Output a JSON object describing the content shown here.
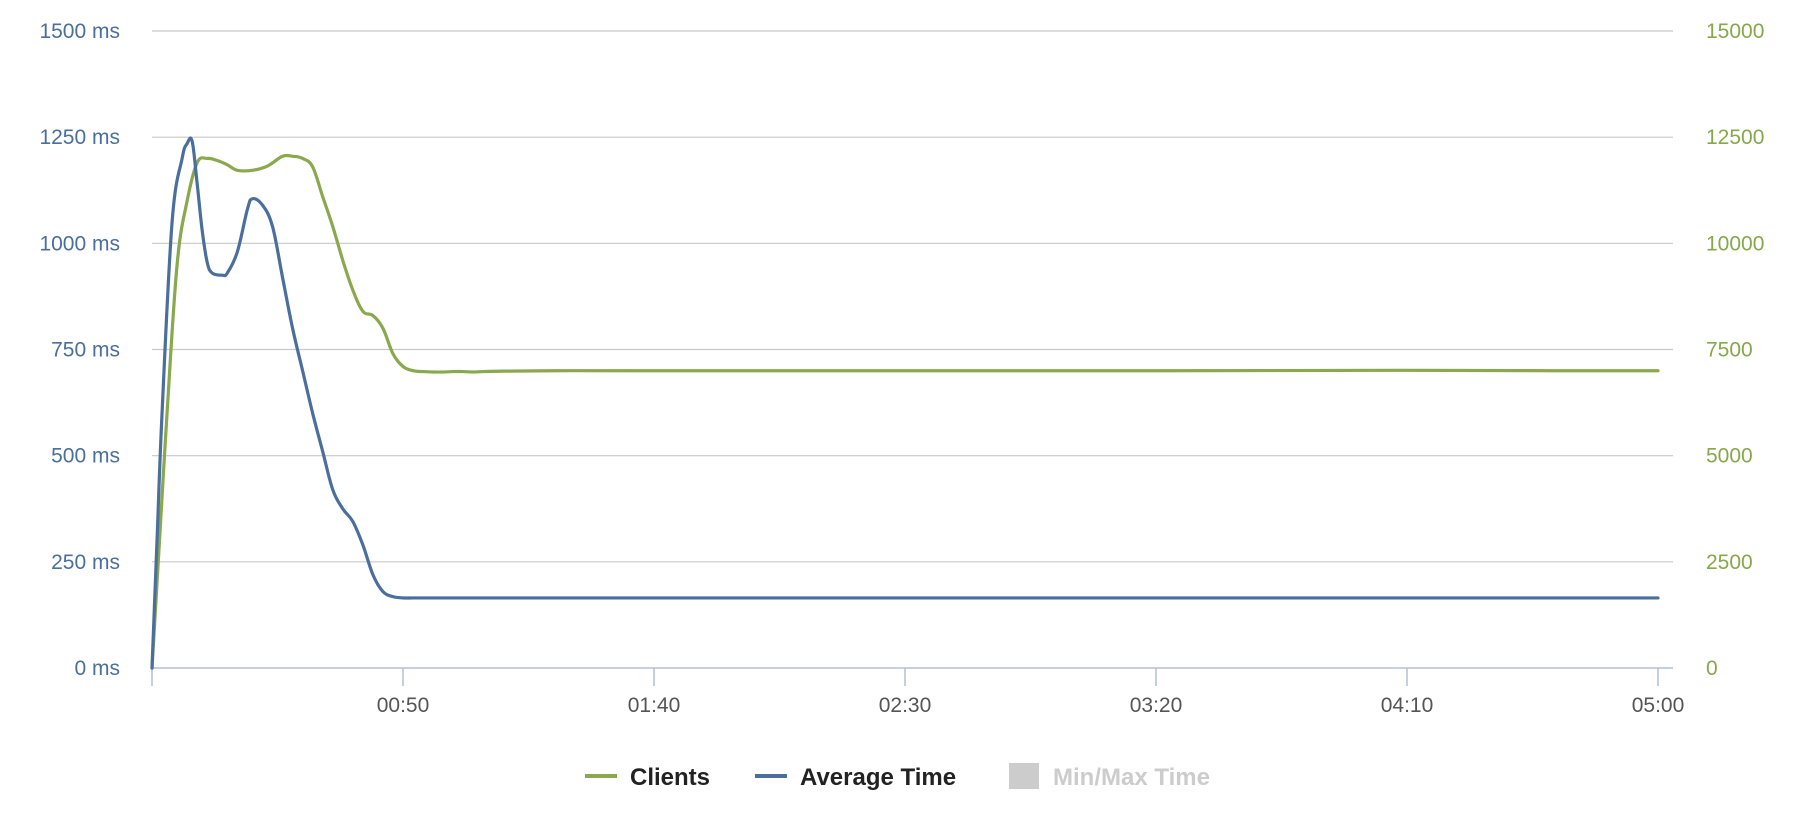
{
  "chart_data": {
    "type": "line",
    "title": "",
    "xlabel": "",
    "y_left_label": "",
    "y_right_label": "",
    "grid": true,
    "legend_position": "bottom-center",
    "x_range": [
      0,
      300
    ],
    "x_tick_values": [
      50,
      100,
      150,
      200,
      250,
      300
    ],
    "x_tick_labels": [
      "00:50",
      "01:40",
      "02:30",
      "03:20",
      "04:10",
      "05:00"
    ],
    "y_left": {
      "range": [
        0,
        1500
      ],
      "ticks": [
        0,
        250,
        500,
        750,
        1000,
        1250,
        1500
      ],
      "tick_labels": [
        "0 ms",
        "250 ms",
        "500 ms",
        "750 ms",
        "1000 ms",
        "1250 ms",
        "1500 ms"
      ],
      "color": "#4a6f9c"
    },
    "y_right": {
      "range": [
        0,
        15000
      ],
      "ticks": [
        0,
        2500,
        5000,
        7500,
        10000,
        12500,
        15000
      ],
      "tick_labels": [
        "0",
        "2500",
        "5000",
        "7500",
        "10000",
        "12500",
        "15000"
      ],
      "color": "#86a84a"
    },
    "series": [
      {
        "name": "Clients",
        "axis": "right",
        "color": "#8aa84e",
        "x": [
          0,
          1,
          3,
          5,
          7,
          9,
          11,
          13,
          15,
          17,
          20,
          23,
          26,
          28,
          30,
          32,
          34,
          36,
          38,
          40,
          42,
          44,
          46,
          48,
          50,
          52,
          54,
          56,
          58,
          60,
          62,
          64,
          66,
          70,
          80,
          100,
          150,
          200,
          250,
          280,
          300
        ],
        "values": [
          0,
          2000,
          6000,
          9500,
          11000,
          11900,
          12000,
          11950,
          11850,
          11720,
          11720,
          11820,
          12050,
          12050,
          12000,
          11800,
          11100,
          10400,
          9600,
          8900,
          8400,
          8300,
          8000,
          7400,
          7100,
          7000,
          6980,
          6970,
          6970,
          6980,
          6980,
          6970,
          6980,
          6990,
          7000,
          7000,
          7000,
          7000,
          7010,
          7000,
          7000
        ]
      },
      {
        "name": "Average Time",
        "axis": "left",
        "color": "#4a6f9c",
        "x": [
          0,
          1,
          2,
          4,
          6,
          7,
          8,
          9,
          10,
          11,
          12,
          14,
          15,
          17,
          19,
          20,
          22,
          24,
          26,
          28,
          30,
          32,
          34,
          36,
          38,
          40,
          42,
          44,
          46,
          48,
          50,
          52,
          54,
          56,
          58,
          60,
          62,
          64,
          70,
          80,
          100,
          150,
          200,
          250,
          280,
          300
        ],
        "values": [
          0,
          300,
          600,
          1050,
          1200,
          1235,
          1240,
          1140,
          1030,
          955,
          930,
          925,
          930,
          980,
          1080,
          1105,
          1090,
          1040,
          920,
          800,
          700,
          600,
          510,
          420,
          375,
          345,
          290,
          220,
          180,
          168,
          165,
          165,
          165,
          165,
          165,
          165,
          165,
          165,
          165,
          165,
          165,
          165,
          165,
          165,
          165,
          165
        ]
      }
    ],
    "legend": [
      {
        "name": "Clients",
        "color": "#8aa84e",
        "symbol": "line",
        "enabled": true
      },
      {
        "name": "Average Time",
        "color": "#4a6f9c",
        "symbol": "line",
        "enabled": true
      },
      {
        "name": "Min/Max Time",
        "color": "#cccccc",
        "symbol": "box",
        "enabled": false
      }
    ]
  }
}
